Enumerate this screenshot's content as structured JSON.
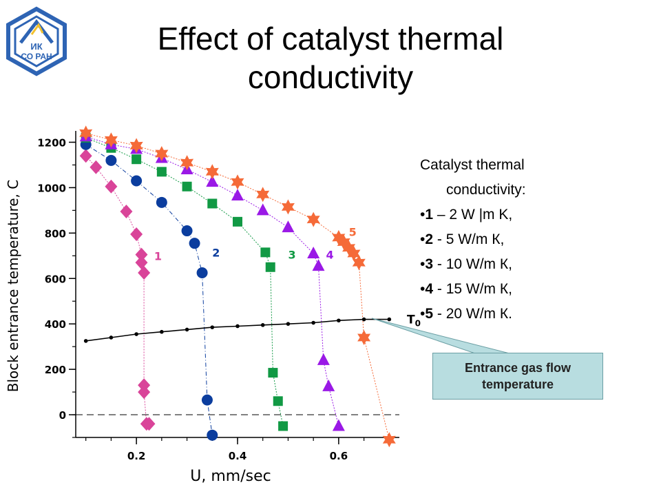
{
  "title": {
    "line1": "Effect of catalyst thermal",
    "line2": "conductivity"
  },
  "logo": {
    "line1": "ИК",
    "line2": "СО РАН"
  },
  "legend": {
    "title_line1": "Catalyst thermal",
    "title_line2": "conductivity:",
    "items": [
      {
        "num": "1",
        "text": " – 2 W |m K,"
      },
      {
        "num": "2",
        "text": " - 5 W/m К,"
      },
      {
        "num": "3",
        "text": " - 10 W/m К,"
      },
      {
        "num": "4",
        "text": " - 15 W/m К,"
      },
      {
        "num": "5",
        "text": " - 20 W/m К."
      }
    ]
  },
  "callout": {
    "line1": "Entrance gas flow",
    "line2": "temperature"
  },
  "colors": {
    "s1": "#d94499",
    "s2": "#0b3d9e",
    "s3": "#119944",
    "s4": "#9a19e6",
    "s5": "#f56a38",
    "gas": "#000000",
    "callout_bg": "#b8dde0"
  },
  "chart_data": {
    "type": "scatter",
    "xlabel": "U, mm/sec",
    "ylabel": "Block entrance temperature, C",
    "xlim": [
      0.08,
      0.72
    ],
    "ylim": [
      -100,
      1250
    ],
    "x_ticks": [
      0.2,
      0.4,
      0.6
    ],
    "y_ticks": [
      0,
      200,
      400,
      600,
      800,
      1000,
      1200
    ],
    "x_tick_labels": [
      "0.2",
      "0.4",
      "0.6"
    ],
    "y_tick_labels": [
      "0",
      "200",
      "400",
      "600",
      "800",
      "1000",
      "1200"
    ],
    "zero_line": 0,
    "series": [
      {
        "label": "1",
        "marker": "diamond",
        "color": "#d94499",
        "x": [
          0.1,
          0.12,
          0.15,
          0.18,
          0.2,
          0.21,
          0.21,
          0.215,
          0.215,
          0.215,
          0.22,
          0.225
        ],
        "y": [
          1140,
          1090,
          1005,
          895,
          795,
          705,
          670,
          625,
          130,
          100,
          -40,
          -40
        ],
        "label_pos": [
          0.235,
          700
        ]
      },
      {
        "label": "2",
        "marker": "circle",
        "color": "#0b3d9e",
        "x": [
          0.1,
          0.15,
          0.2,
          0.25,
          0.3,
          0.315,
          0.33,
          0.34,
          0.35
        ],
        "y": [
          1190,
          1120,
          1030,
          935,
          810,
          755,
          625,
          65,
          -90
        ],
        "label_pos": [
          0.35,
          715
        ]
      },
      {
        "label": "3",
        "marker": "square",
        "color": "#119944",
        "x": [
          0.1,
          0.15,
          0.2,
          0.25,
          0.3,
          0.35,
          0.4,
          0.455,
          0.465,
          0.47,
          0.48,
          0.49
        ],
        "y": [
          1220,
          1175,
          1125,
          1070,
          1005,
          930,
          850,
          715,
          650,
          185,
          60,
          -50
        ],
        "label_pos": [
          0.5,
          705
        ]
      },
      {
        "label": "4",
        "marker": "triangle",
        "color": "#9a19e6",
        "x": [
          0.1,
          0.15,
          0.2,
          0.25,
          0.3,
          0.35,
          0.4,
          0.45,
          0.5,
          0.55,
          0.56,
          0.57,
          0.58,
          0.6
        ],
        "y": [
          1225,
          1190,
          1170,
          1130,
          1080,
          1025,
          965,
          900,
          825,
          710,
          655,
          240,
          125,
          -50
        ],
        "label_pos": [
          0.575,
          705
        ]
      },
      {
        "label": "5",
        "marker": "star",
        "color": "#f56a38",
        "x": [
          0.1,
          0.15,
          0.2,
          0.25,
          0.3,
          0.35,
          0.4,
          0.45,
          0.5,
          0.55,
          0.6,
          0.61,
          0.62,
          0.63,
          0.64,
          0.65,
          0.7
        ],
        "y": [
          1240,
          1210,
          1185,
          1150,
          1110,
          1070,
          1025,
          970,
          915,
          860,
          780,
          760,
          735,
          710,
          670,
          340,
          -110
        ],
        "label_pos": [
          0.62,
          805
        ]
      },
      {
        "label": "T0",
        "marker": "dot",
        "color": "#000000",
        "x": [
          0.1,
          0.15,
          0.2,
          0.25,
          0.3,
          0.35,
          0.4,
          0.45,
          0.5,
          0.55,
          0.6,
          0.65,
          0.7
        ],
        "y": [
          325,
          340,
          355,
          365,
          375,
          385,
          390,
          395,
          400,
          405,
          415,
          420,
          420
        ],
        "label_pos": [
          0.735,
          420
        ]
      }
    ]
  }
}
